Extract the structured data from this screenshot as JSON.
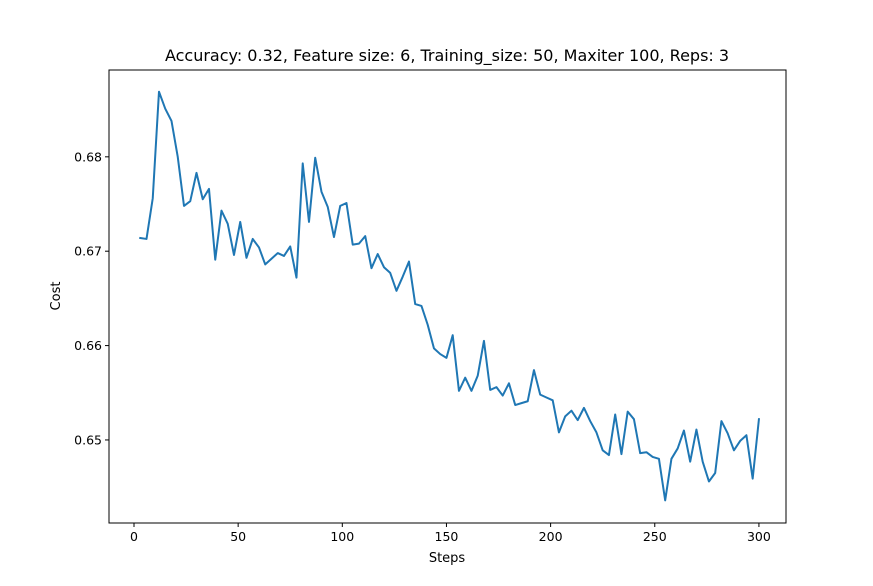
{
  "chart_data": {
    "type": "line",
    "title": "Accuracy: 0.32, Feature size: 6, Training_size: 50, Maxiter 100, Reps: 3",
    "xlabel": "Steps",
    "ylabel": "Cost",
    "xlim": [
      -12,
      313
    ],
    "ylim": [
      0.6412,
      0.6892
    ],
    "xticks": [
      0,
      50,
      100,
      150,
      200,
      250,
      300
    ],
    "xtick_labels": [
      "0",
      "50",
      "100",
      "150",
      "200",
      "250",
      "300"
    ],
    "yticks": [
      0.65,
      0.66,
      0.67,
      0.68
    ],
    "ytick_labels": [
      "0.65",
      "0.66",
      "0.67",
      "0.68"
    ],
    "grid": false,
    "legend": "none",
    "line_color": "#1f77b4",
    "series": [
      {
        "x": [
          3,
          6,
          9,
          12,
          15,
          18,
          21,
          24,
          27,
          30,
          33,
          36,
          39,
          42,
          45,
          48,
          51,
          54,
          57,
          60,
          63,
          66,
          69,
          72,
          75,
          78,
          81,
          84,
          87,
          90,
          93,
          96,
          99,
          102,
          105,
          108,
          111,
          114,
          117,
          120,
          123,
          126,
          129,
          132,
          135,
          138,
          141,
          144,
          147,
          150,
          153,
          156,
          159,
          162,
          165,
          168,
          171,
          174,
          177,
          180,
          183,
          186,
          189,
          192,
          195,
          198,
          201,
          204,
          207,
          210,
          213,
          216,
          219,
          222,
          225,
          228,
          231,
          234,
          237,
          240,
          243,
          246,
          249,
          252,
          255,
          258,
          261,
          264,
          267,
          270,
          273,
          276,
          279,
          282,
          285,
          288,
          291,
          294,
          297,
          300
        ],
        "y": [
          0.6714,
          0.6713,
          0.6756,
          0.6869,
          0.6851,
          0.6838,
          0.68,
          0.6748,
          0.6753,
          0.6783,
          0.6755,
          0.6766,
          0.6691,
          0.6743,
          0.6729,
          0.6696,
          0.6731,
          0.6693,
          0.6713,
          0.6704,
          0.6686,
          0.6692,
          0.6698,
          0.6695,
          0.6705,
          0.6672,
          0.6793,
          0.6731,
          0.6799,
          0.6763,
          0.6747,
          0.6715,
          0.6748,
          0.6751,
          0.6707,
          0.6708,
          0.6716,
          0.6682,
          0.6697,
          0.6683,
          0.6677,
          0.6658,
          0.6673,
          0.6689,
          0.6644,
          0.6642,
          0.6622,
          0.6597,
          0.6591,
          0.6587,
          0.6611,
          0.6552,
          0.6566,
          0.6552,
          0.6568,
          0.6605,
          0.6553,
          0.6556,
          0.6547,
          0.656,
          0.6537,
          0.6539,
          0.6541,
          0.6574,
          0.6548,
          0.6545,
          0.6542,
          0.6508,
          0.6525,
          0.6531,
          0.6521,
          0.6534,
          0.652,
          0.6508,
          0.6489,
          0.6484,
          0.6527,
          0.6485,
          0.653,
          0.6522,
          0.6486,
          0.6487,
          0.6482,
          0.648,
          0.6436,
          0.648,
          0.6491,
          0.651,
          0.6477,
          0.6511,
          0.6477,
          0.6456,
          0.6465,
          0.652,
          0.6507,
          0.6489,
          0.6499,
          0.6505,
          0.6459,
          0.6522
        ]
      }
    ]
  }
}
